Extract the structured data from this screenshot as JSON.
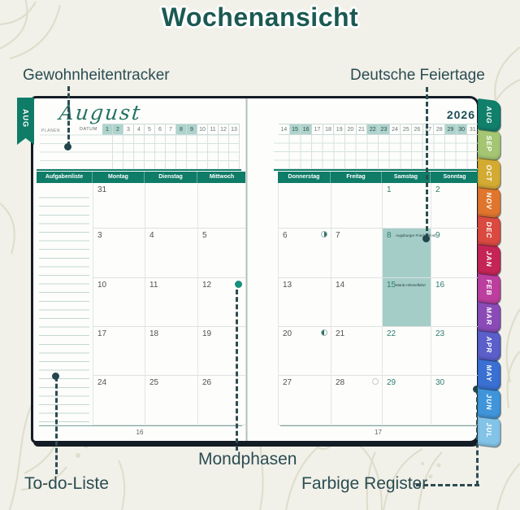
{
  "title": "Wochenansicht",
  "callouts": {
    "habit_tracker": "Gewohnheitentracker",
    "german_holidays": "Deutsche Feiertage",
    "todo_list": "To-do-Liste",
    "moon_phases": "Mondphasen",
    "colored_tabs": "Farbige Register"
  },
  "planner": {
    "left_page": {
      "side_tab": "AUG",
      "month_name": "August",
      "planen_label": "PLANEN",
      "datum_label": "DATUM",
      "date_strip": [
        "1",
        "2",
        "3",
        "4",
        "5",
        "6",
        "7",
        "8",
        "9",
        "10",
        "11",
        "12",
        "13"
      ],
      "highlighted_dates": [
        "1",
        "2",
        "8",
        "9"
      ],
      "columns": [
        "Aufgabenliste",
        "Montag",
        "Dienstag",
        "Mittwoch"
      ],
      "rows": [
        [
          "31",
          "",
          ""
        ],
        [
          "3",
          "4",
          "5"
        ],
        [
          "10",
          "11",
          "12"
        ],
        [
          "17",
          "18",
          "19"
        ],
        [
          "24",
          "25",
          "26"
        ]
      ],
      "page_number": "16"
    },
    "right_page": {
      "year": "2026",
      "date_strip": [
        "14",
        "15",
        "16",
        "17",
        "18",
        "19",
        "20",
        "21",
        "22",
        "23",
        "24",
        "25",
        "26",
        "27",
        "28",
        "29",
        "30",
        "31"
      ],
      "highlighted_dates": [
        "15",
        "16",
        "22",
        "23",
        "29",
        "30"
      ],
      "columns": [
        "Donnerstag",
        "Freitag",
        "Samstag",
        "Sonntag"
      ],
      "rows": [
        [
          "",
          "",
          "1",
          "2"
        ],
        [
          "6",
          "7",
          "8",
          "9"
        ],
        [
          "13",
          "14",
          "15",
          "16"
        ],
        [
          "20",
          "21",
          "22",
          "23"
        ],
        [
          "27",
          "28",
          "29",
          "30"
        ]
      ],
      "holidays": [
        {
          "date": "8",
          "name": "Augsburger Friedensfest"
        },
        {
          "date": "15",
          "name": "Mariä Himmelfahrt"
        }
      ],
      "page_number": "17"
    },
    "moon_phases": [
      {
        "date": "6",
        "phase": "last-quarter"
      },
      {
        "date": "12",
        "phase": "new-moon"
      },
      {
        "date": "20",
        "phase": "first-quarter"
      },
      {
        "date": "28",
        "phase": "full-moon"
      }
    ],
    "month_tabs": [
      {
        "label": "AUG",
        "color": "#10806b"
      },
      {
        "label": "SEP",
        "color": "#a4c673"
      },
      {
        "label": "OCT",
        "color": "#d3ab33"
      },
      {
        "label": "NOV",
        "color": "#e0762e"
      },
      {
        "label": "DEC",
        "color": "#da4a41"
      },
      {
        "label": "JAN",
        "color": "#c42556"
      },
      {
        "label": "FEB",
        "color": "#bc3e9e"
      },
      {
        "label": "MAR",
        "color": "#8a4bb7"
      },
      {
        "label": "APR",
        "color": "#5a5fca"
      },
      {
        "label": "MAY",
        "color": "#3a70d2"
      },
      {
        "label": "JUN",
        "color": "#4095da"
      },
      {
        "label": "JUL",
        "color": "#83c3e8"
      }
    ]
  },
  "colors": {
    "accent_teal": "#0f7c68",
    "holiday_highlight": "#a5cdc8",
    "weekend_text": "#2e7d6e",
    "callout_text": "#2b4d52"
  }
}
